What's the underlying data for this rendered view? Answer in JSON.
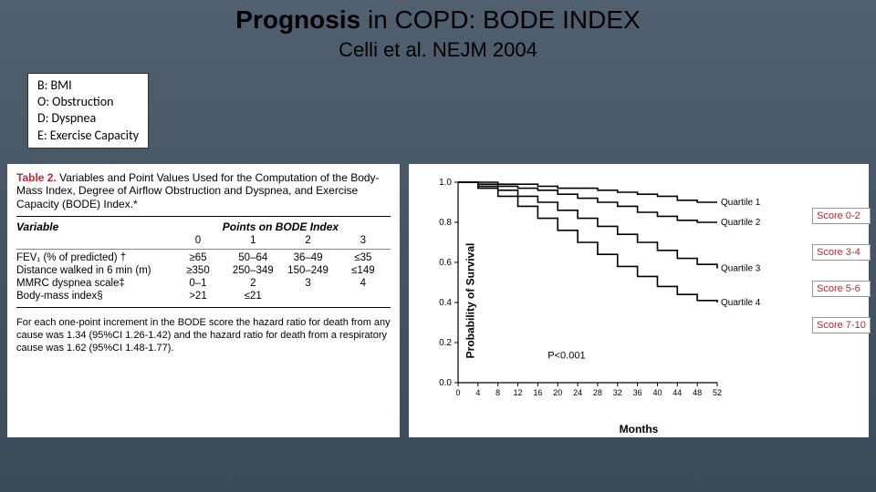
{
  "title_bold": "Prognosis",
  "title_rest": " in COPD: BODE INDEX",
  "subtitle": "Celli et al. NEJM 2004",
  "legend": [
    "B: BMI",
    "O: Obstruction",
    "D: Dyspnea",
    "E: Exercise Capacity"
  ],
  "table": {
    "caption_red": "Table 2.",
    "caption_black": " Variables and Point Values Used for the Computation of the Body-Mass Index, Degree of Airflow Obstruction and Dyspnea, and Exercise Capacity (BODE) Index.*",
    "col_variable": "Variable",
    "col_points": "Points on BODE Index",
    "point_headers": [
      "0",
      "1",
      "2",
      "3"
    ],
    "rows": [
      {
        "v": "FEV₁ (% of predicted) †",
        "c": [
          "≥65",
          "50–64",
          "36–49",
          "≤35"
        ]
      },
      {
        "v": "Distance walked in 6 min (m)",
        "c": [
          "≥350",
          "250–349",
          "150–249",
          "≤149"
        ]
      },
      {
        "v": "MMRC dyspnea scale‡",
        "c": [
          "0–1",
          "2",
          "3",
          "4"
        ]
      },
      {
        "v": "Body-mass index§",
        "c": [
          ">21",
          "≤21",
          "",
          ""
        ]
      }
    ],
    "footnote": "For each one-point increment in the BODE score the hazard ratio for death from any cause was 1.34 (95%CI 1.26-1.42) and the hazard ratio for death from a respiratory cause was 1.62 (95%CI 1.48-1.77)."
  },
  "chart": {
    "type": "step-line",
    "y_label": "Probability of Survival",
    "x_label": "Months",
    "xlim": [
      0,
      52
    ],
    "ylim": [
      0,
      1.0
    ],
    "xticks": [
      0,
      4,
      8,
      12,
      16,
      20,
      24,
      28,
      32,
      36,
      40,
      44,
      48,
      52
    ],
    "yticks": [
      0,
      0.2,
      0.4,
      0.6,
      0.8,
      1.0
    ],
    "bg": "#ffffff",
    "tick_color": "#000000",
    "line_color": "#000000",
    "line_width": 1.6,
    "p_text": "P<0.001",
    "series": [
      {
        "name": "Quartile 1",
        "label_y": 0.9,
        "pts": [
          [
            0,
            1.0
          ],
          [
            4,
            1.0
          ],
          [
            8,
            0.99
          ],
          [
            12,
            0.99
          ],
          [
            16,
            0.98
          ],
          [
            20,
            0.97
          ],
          [
            24,
            0.97
          ],
          [
            28,
            0.96
          ],
          [
            32,
            0.95
          ],
          [
            36,
            0.94
          ],
          [
            40,
            0.93
          ],
          [
            44,
            0.91
          ],
          [
            48,
            0.9
          ],
          [
            52,
            0.9
          ]
        ]
      },
      {
        "name": "Quartile 2",
        "label_y": 0.8,
        "pts": [
          [
            0,
            1.0
          ],
          [
            4,
            0.99
          ],
          [
            8,
            0.98
          ],
          [
            12,
            0.97
          ],
          [
            16,
            0.96
          ],
          [
            20,
            0.94
          ],
          [
            24,
            0.92
          ],
          [
            28,
            0.9
          ],
          [
            32,
            0.88
          ],
          [
            36,
            0.85
          ],
          [
            40,
            0.83
          ],
          [
            44,
            0.81
          ],
          [
            48,
            0.8
          ],
          [
            52,
            0.8
          ]
        ]
      },
      {
        "name": "Quartile 3",
        "label_y": 0.57,
        "pts": [
          [
            0,
            1.0
          ],
          [
            4,
            0.98
          ],
          [
            8,
            0.96
          ],
          [
            12,
            0.93
          ],
          [
            16,
            0.9
          ],
          [
            20,
            0.86
          ],
          [
            24,
            0.82
          ],
          [
            28,
            0.78
          ],
          [
            32,
            0.74
          ],
          [
            36,
            0.7
          ],
          [
            40,
            0.66
          ],
          [
            44,
            0.62
          ],
          [
            48,
            0.59
          ],
          [
            52,
            0.57
          ]
        ]
      },
      {
        "name": "Quartile 4",
        "label_y": 0.4,
        "pts": [
          [
            0,
            1.0
          ],
          [
            4,
            0.97
          ],
          [
            8,
            0.93
          ],
          [
            12,
            0.88
          ],
          [
            16,
            0.82
          ],
          [
            20,
            0.76
          ],
          [
            24,
            0.7
          ],
          [
            28,
            0.64
          ],
          [
            32,
            0.58
          ],
          [
            36,
            0.53
          ],
          [
            40,
            0.48
          ],
          [
            44,
            0.44
          ],
          [
            48,
            0.41
          ],
          [
            52,
            0.4
          ]
        ]
      }
    ],
    "score_labels": [
      "Score 0-2",
      "Score 3-4",
      "Score 5-6",
      "Score 7-10"
    ]
  }
}
